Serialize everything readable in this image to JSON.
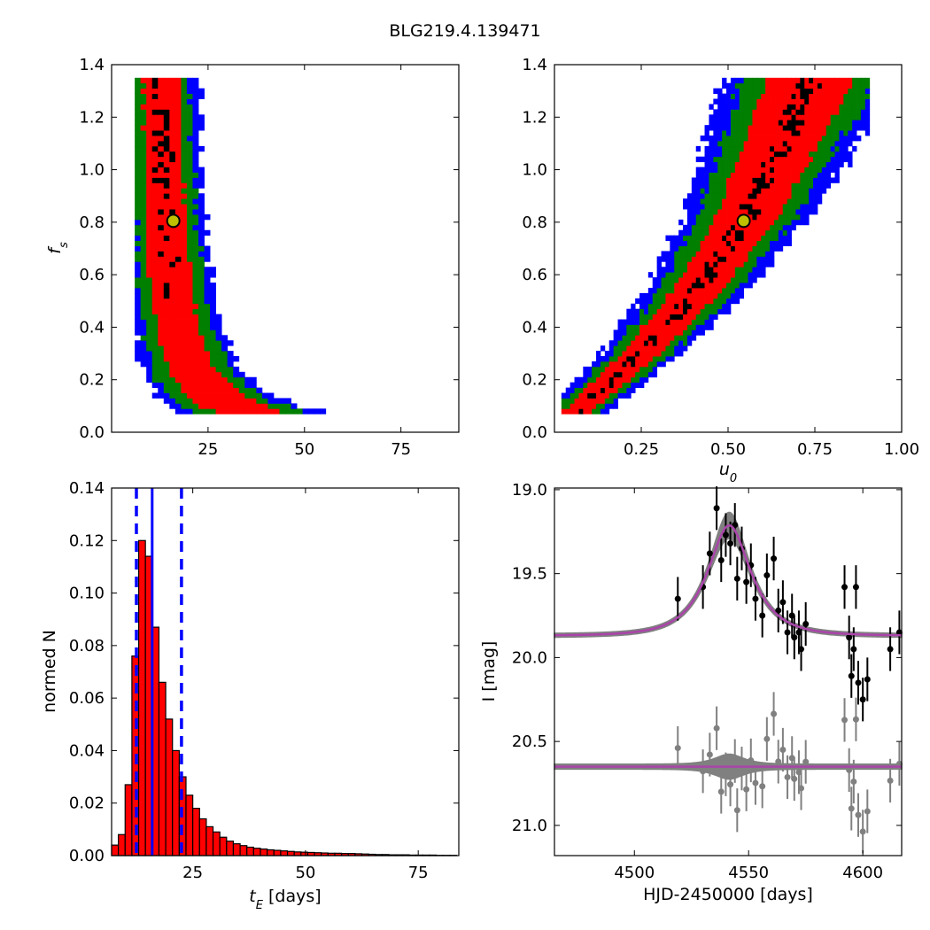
{
  "figure": {
    "title": "BLG219.4.139471"
  },
  "chart_data": [
    {
      "id": "tE_fs",
      "type": "heatmap",
      "xlabel": "",
      "ylabel": "f_s",
      "xlim": [
        0,
        90
      ],
      "ylim": [
        0.0,
        1.4
      ],
      "xticks": [
        "25",
        "50",
        "75"
      ],
      "xtick_values": [
        25,
        50,
        75
      ],
      "yticks": [
        "0.0",
        "0.2",
        "0.4",
        "0.6",
        "0.8",
        "1.0",
        "1.2",
        "1.4"
      ],
      "ytick_values": [
        0.0,
        0.2,
        0.4,
        0.6,
        0.8,
        1.0,
        1.2,
        1.4
      ],
      "confidence_colors": [
        "#0000ff",
        "#007f00",
        "#ff0000",
        "#000000"
      ],
      "best_fit": {
        "x": 16.0,
        "y": 0.805
      },
      "best_fit_marker_color": "#bfbf00",
      "ridge_function": "tE = 10 + 2.85 / (fs + 0.045)",
      "fs_range": [
        0.07,
        1.35
      ]
    },
    {
      "id": "u0_fs",
      "type": "heatmap",
      "xlabel": "u_0",
      "ylabel": "",
      "xlim": [
        0.0,
        1.0
      ],
      "ylim": [
        0.0,
        1.4
      ],
      "xticks": [
        "0.25",
        "0.50",
        "0.75",
        "1.00"
      ],
      "xtick_values": [
        0.25,
        0.5,
        0.75,
        1.0
      ],
      "yticks": [
        "0.0",
        "0.2",
        "0.4",
        "0.6",
        "0.8",
        "1.0",
        "1.2",
        "1.4"
      ],
      "ytick_values": [
        0.0,
        0.2,
        0.4,
        0.6,
        0.8,
        1.0,
        1.2,
        1.4
      ],
      "confidence_colors": [
        "#0000ff",
        "#007f00",
        "#ff0000",
        "#000000"
      ],
      "best_fit": {
        "x": 0.545,
        "y": 0.805
      },
      "best_fit_marker_color": "#bfbf00",
      "ridge_points": [
        [
          0.06,
          0.07
        ],
        [
          0.25,
          0.3
        ],
        [
          0.4,
          0.52
        ],
        [
          0.545,
          0.805
        ],
        [
          0.65,
          1.1
        ],
        [
          0.74,
          1.35
        ]
      ]
    },
    {
      "id": "tE_hist",
      "type": "bar",
      "xlabel": "t_E  [days]",
      "ylabel": "normed N",
      "xlim": [
        7,
        84
      ],
      "ylim": [
        0.0,
        0.14
      ],
      "xticks": [
        "25",
        "50",
        "75"
      ],
      "xtick_values": [
        25,
        50,
        75
      ],
      "yticks": [
        "0.00",
        "0.02",
        "0.04",
        "0.06",
        "0.08",
        "0.10",
        "0.12",
        "0.14"
      ],
      "ytick_values": [
        0.0,
        0.02,
        0.04,
        0.06,
        0.08,
        0.1,
        0.12,
        0.14
      ],
      "bin_start": 7,
      "bin_width": 1.5,
      "values": [
        0.004,
        0.008,
        0.027,
        0.076,
        0.12,
        0.114,
        0.087,
        0.066,
        0.052,
        0.04,
        0.03,
        0.023,
        0.018,
        0.014,
        0.011,
        0.009,
        0.007,
        0.0055,
        0.0045,
        0.0038,
        0.0032,
        0.0028,
        0.0025,
        0.0022,
        0.002,
        0.0018,
        0.0016,
        0.0014,
        0.0013,
        0.0012,
        0.0011,
        0.001,
        0.0009,
        0.0009,
        0.0008,
        0.0008,
        0.0007,
        0.0006,
        0.0005,
        0.0004,
        0.0004,
        0.0003,
        0.0003,
        0.0003,
        0.0002,
        0.0002,
        0.0002,
        0.0002,
        0.0001,
        0.0001,
        0.0001
      ],
      "bar_color": "#ff0000",
      "median_line": 16.0,
      "quantile_lines": [
        12.5,
        22.5
      ],
      "line_color": "#0000ff"
    },
    {
      "id": "lightcurve",
      "type": "scatter",
      "xlabel": "HJD-2450000 [days]",
      "ylabel": "I [mag]",
      "xlim": [
        4465,
        4617
      ],
      "ylim": [
        21.18,
        18.99
      ],
      "xticks": [
        "4500",
        "4550",
        "4600"
      ],
      "xtick_values": [
        4500,
        4550,
        4600
      ],
      "yticks": [
        "19.0",
        "19.5",
        "20.0",
        "20.5",
        "21.0"
      ],
      "ytick_values": [
        19.0,
        19.5,
        20.0,
        20.5,
        21.0
      ],
      "model": {
        "t0": 4541.5,
        "tE": 16.0,
        "u0": 0.545,
        "fs": 0.805,
        "baseline": 19.87
      },
      "residual_offset": 20.65,
      "model_color": "#aa44aa",
      "band_color": "#808080",
      "data_color": "#000000",
      "residual_color": "#808080",
      "points": [
        {
          "t": 4519,
          "mag": 19.65,
          "err": 0.13
        },
        {
          "t": 4530,
          "mag": 19.58,
          "err": 0.13
        },
        {
          "t": 4533,
          "mag": 19.38,
          "err": 0.13
        },
        {
          "t": 4536,
          "mag": 19.11,
          "err": 0.13
        },
        {
          "t": 4538,
          "mag": 19.42,
          "err": 0.13
        },
        {
          "t": 4540,
          "mag": 19.27,
          "err": 0.13
        },
        {
          "t": 4542,
          "mag": 19.32,
          "err": 0.13
        },
        {
          "t": 4544,
          "mag": 19.21,
          "err": 0.13
        },
        {
          "t": 4545,
          "mag": 19.53,
          "err": 0.13
        },
        {
          "t": 4547,
          "mag": 19.35,
          "err": 0.13
        },
        {
          "t": 4549,
          "mag": 19.55,
          "err": 0.13
        },
        {
          "t": 4551,
          "mag": 19.45,
          "err": 0.13
        },
        {
          "t": 4553,
          "mag": 19.65,
          "err": 0.13
        },
        {
          "t": 4556,
          "mag": 19.75,
          "err": 0.13
        },
        {
          "t": 4558,
          "mag": 19.51,
          "err": 0.13
        },
        {
          "t": 4561,
          "mag": 19.41,
          "err": 0.13
        },
        {
          "t": 4563,
          "mag": 19.72,
          "err": 0.13
        },
        {
          "t": 4565,
          "mag": 19.67,
          "err": 0.13
        },
        {
          "t": 4567,
          "mag": 19.85,
          "err": 0.13
        },
        {
          "t": 4569,
          "mag": 19.75,
          "err": 0.13
        },
        {
          "t": 4570,
          "mag": 19.88,
          "err": 0.13
        },
        {
          "t": 4572,
          "mag": 19.85,
          "err": 0.13
        },
        {
          "t": 4573,
          "mag": 19.95,
          "err": 0.13
        },
        {
          "t": 4575,
          "mag": 19.8,
          "err": 0.13
        },
        {
          "t": 4592,
          "mag": 19.58,
          "err": 0.13
        },
        {
          "t": 4594,
          "mag": 19.88,
          "err": 0.13
        },
        {
          "t": 4595,
          "mag": 20.11,
          "err": 0.13
        },
        {
          "t": 4596,
          "mag": 19.95,
          "err": 0.13
        },
        {
          "t": 4597,
          "mag": 19.58,
          "err": 0.13
        },
        {
          "t": 4598,
          "mag": 20.15,
          "err": 0.13
        },
        {
          "t": 4600,
          "mag": 20.25,
          "err": 0.13
        },
        {
          "t": 4602,
          "mag": 20.13,
          "err": 0.13
        },
        {
          "t": 4612,
          "mag": 19.95,
          "err": 0.13
        },
        {
          "t": 4616,
          "mag": 19.85,
          "err": 0.13
        }
      ]
    }
  ]
}
